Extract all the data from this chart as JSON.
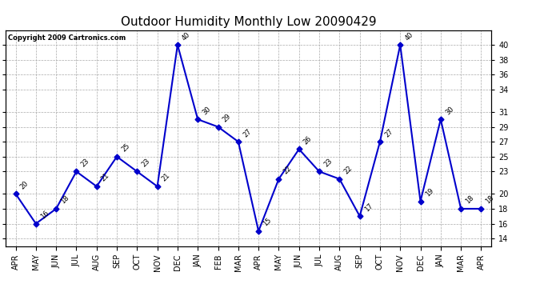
{
  "title": "Outdoor Humidity Monthly Low 20090429",
  "copyright": "Copyright 2009 Cartronics.com",
  "categories": [
    "APR",
    "MAY",
    "JUN",
    "JUL",
    "AUG",
    "SEP",
    "OCT",
    "NOV",
    "DEC",
    "JAN",
    "FEB",
    "MAR",
    "APR",
    "MAY",
    "JUN",
    "JUL",
    "AUG",
    "SEP",
    "OCT",
    "NOV",
    "DEC",
    "JAN",
    "MAR",
    "APR"
  ],
  "values": [
    20,
    16,
    18,
    23,
    21,
    25,
    23,
    21,
    40,
    30,
    29,
    27,
    15,
    22,
    26,
    23,
    22,
    17,
    27,
    40,
    19,
    30,
    18,
    18
  ],
  "line_color": "#0000CC",
  "marker_color": "#0000CC",
  "bg_color": "#FFFFFF",
  "grid_color": "#AAAAAA",
  "ylim": [
    13,
    42
  ],
  "yticks": [
    14,
    16,
    18,
    20,
    23,
    25,
    27,
    29,
    31,
    34,
    36,
    38,
    40
  ],
  "title_fontsize": 11,
  "annot_fontsize": 6,
  "copyright_fontsize": 6,
  "tick_fontsize": 7
}
